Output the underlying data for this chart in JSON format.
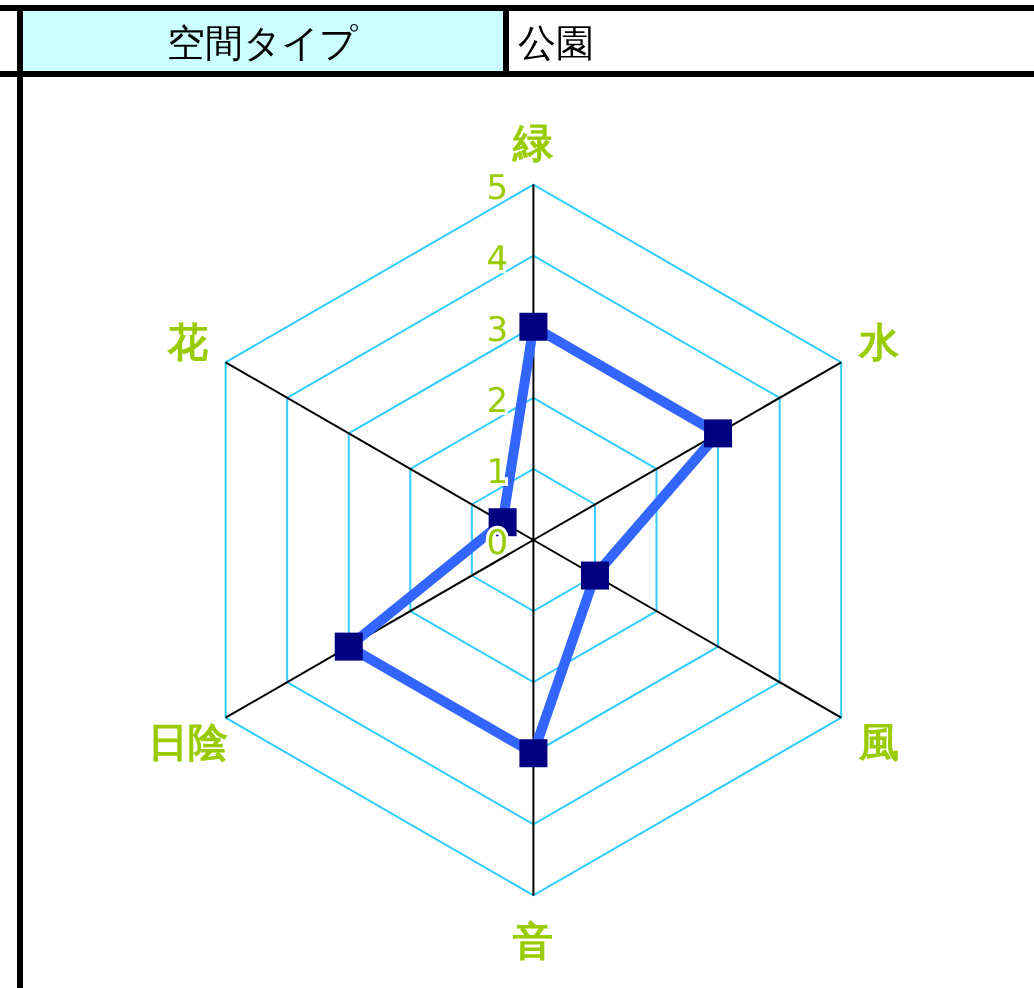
{
  "chart_data": {
    "type": "radar",
    "title": "空間タイプ",
    "subtitle": "公園",
    "categories": [
      "緑",
      "水",
      "風",
      "音",
      "日陰",
      "花"
    ],
    "series": [
      {
        "color": "#3366ff",
        "colors": [
          "#000080",
          "#000080",
          "#000080",
          "#000080",
          "#000080",
          "#000080"
        ],
        "values": [
          3,
          3,
          1,
          3,
          3,
          0.5
        ]
      }
    ],
    "ylim": [
      0,
      5
    ],
    "yticks": [
      0,
      1,
      2,
      3,
      4,
      5
    ],
    "grid": true,
    "marker": "square"
  }
}
